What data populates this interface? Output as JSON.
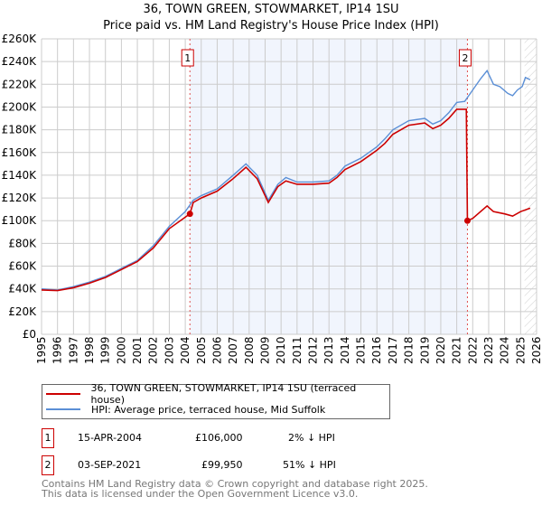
{
  "chart_data": {
    "type": "line",
    "title": "36, TOWN GREEN, STOWMARKET, IP14 1SU",
    "subtitle": "Price paid vs. HM Land Registry's House Price Index (HPI)",
    "xlim": [
      1995,
      2026
    ],
    "ylim": [
      0,
      260000
    ],
    "x_ticks": [
      "1995",
      "1996",
      "1997",
      "1998",
      "1999",
      "2000",
      "2001",
      "2002",
      "2003",
      "2004",
      "2005",
      "2006",
      "2007",
      "2008",
      "2009",
      "2010",
      "2011",
      "2012",
      "2013",
      "2014",
      "2015",
      "2016",
      "2017",
      "2018",
      "2019",
      "2020",
      "2021",
      "2022",
      "2023",
      "2024",
      "2025",
      "2026"
    ],
    "y_ticks": [
      "£0",
      "£20K",
      "£40K",
      "£60K",
      "£80K",
      "£100K",
      "£120K",
      "£140K",
      "£160K",
      "£180K",
      "£200K",
      "£220K",
      "£240K",
      "£260K"
    ],
    "series": [
      {
        "name": "HPI: Average price, terraced house, Mid Suffolk",
        "color": "#5b8fd6",
        "x": [
          1995,
          1996,
          1997,
          1998,
          1999,
          2000,
          2001,
          2002,
          2003,
          2004,
          2004.5,
          2005,
          2006,
          2007,
          2007.8,
          2008.5,
          2009.2,
          2009.8,
          2010.3,
          2011,
          2012,
          2013,
          2013.5,
          2014,
          2015,
          2016,
          2016.5,
          2017,
          2018,
          2019,
          2019.5,
          2020,
          2020.5,
          2021,
          2021.5,
          2022,
          2022.5,
          2022.9,
          2023.3,
          2023.7,
          2024.2,
          2024.5,
          2024.8,
          2025.1,
          2025.3,
          2025.6
        ],
        "y": [
          40000,
          39000,
          42000,
          46000,
          51000,
          58000,
          65000,
          78000,
          95000,
          108000,
          118000,
          122000,
          128000,
          140000,
          150000,
          140000,
          118000,
          132000,
          138000,
          134000,
          134000,
          135000,
          140000,
          148000,
          155000,
          165000,
          172000,
          180000,
          188000,
          190000,
          185000,
          188000,
          195000,
          204000,
          205000,
          215000,
          225000,
          232000,
          220000,
          218000,
          212000,
          210000,
          215000,
          218000,
          226000,
          224000
        ]
      },
      {
        "name": "36, TOWN GREEN, STOWMARKET, IP14 1SU (terraced house)",
        "color": "#cc0000",
        "x": [
          1995,
          1996,
          1997,
          1998,
          1999,
          2000,
          2001,
          2002,
          2003,
          2004.29,
          2004.5,
          2005,
          2006,
          2007,
          2007.8,
          2008.5,
          2009.2,
          2009.8,
          2010.3,
          2011,
          2012,
          2013,
          2013.5,
          2014,
          2015,
          2016,
          2016.5,
          2017,
          2018,
          2019,
          2019.5,
          2020,
          2020.5,
          2021,
          2021.6,
          2021.67,
          2022,
          2022.9,
          2023.3,
          2024,
          2024.5,
          2025,
          2025.6
        ],
        "y": [
          39000,
          38500,
          41000,
          45000,
          50000,
          57000,
          64000,
          76000,
          93000,
          106000,
          116000,
          120000,
          126000,
          137000,
          147000,
          137000,
          116000,
          130000,
          135000,
          132000,
          132000,
          133000,
          138000,
          145000,
          152000,
          162000,
          168000,
          176000,
          184000,
          186000,
          181000,
          184000,
          190000,
          198000,
          198000,
          99950,
          102000,
          113000,
          108000,
          106000,
          104000,
          108000,
          111000
        ]
      }
    ],
    "sales": [
      {
        "label": "1",
        "x": 2004.29,
        "price": 106000,
        "date": "15-APR-2004",
        "price_text": "£106,000",
        "hpi": "2% ↓ HPI"
      },
      {
        "label": "2",
        "x": 2021.67,
        "price": 99950,
        "date": "03-SEP-2021",
        "price_text": "£99,950",
        "hpi": "51% ↓ HPI"
      }
    ]
  },
  "legend": {
    "property": "36, TOWN GREEN, STOWMARKET, IP14 1SU (terraced house)",
    "hpi": "HPI: Average price, terraced house, Mid Suffolk"
  },
  "footer": {
    "line1": "Contains HM Land Registry data © Crown copyright and database right 2025.",
    "line2": "This data is licensed under the Open Government Licence v3.0."
  }
}
